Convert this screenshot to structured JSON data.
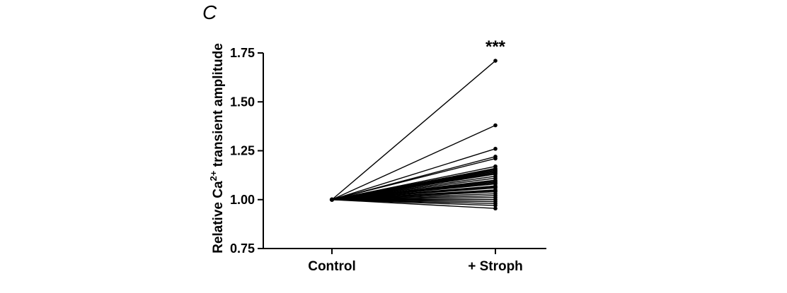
{
  "panel_label": "C",
  "chart_data": {
    "type": "line",
    "categories": [
      "Control",
      "+ Stroph"
    ],
    "ylabel_prefix": "Relative Ca",
    "ylabel_superscript": "2+",
    "ylabel_suffix": " transient amplitude",
    "ylim": [
      0.75,
      1.75
    ],
    "yticks": [
      "0.75",
      "1.00",
      "1.25",
      "1.50",
      "1.75"
    ],
    "annotation": "***",
    "grid": false,
    "control_value": 1.0,
    "stroph_values": [
      1.71,
      1.38,
      1.26,
      1.22,
      1.21,
      1.17,
      1.16,
      1.155,
      1.15,
      1.145,
      1.14,
      1.135,
      1.13,
      1.12,
      1.11,
      1.1,
      1.095,
      1.09,
      1.085,
      1.08,
      1.07,
      1.065,
      1.06,
      1.05,
      1.045,
      1.04,
      1.03,
      1.02,
      1.01,
      1.0,
      0.99,
      0.98,
      0.97,
      0.955
    ]
  }
}
